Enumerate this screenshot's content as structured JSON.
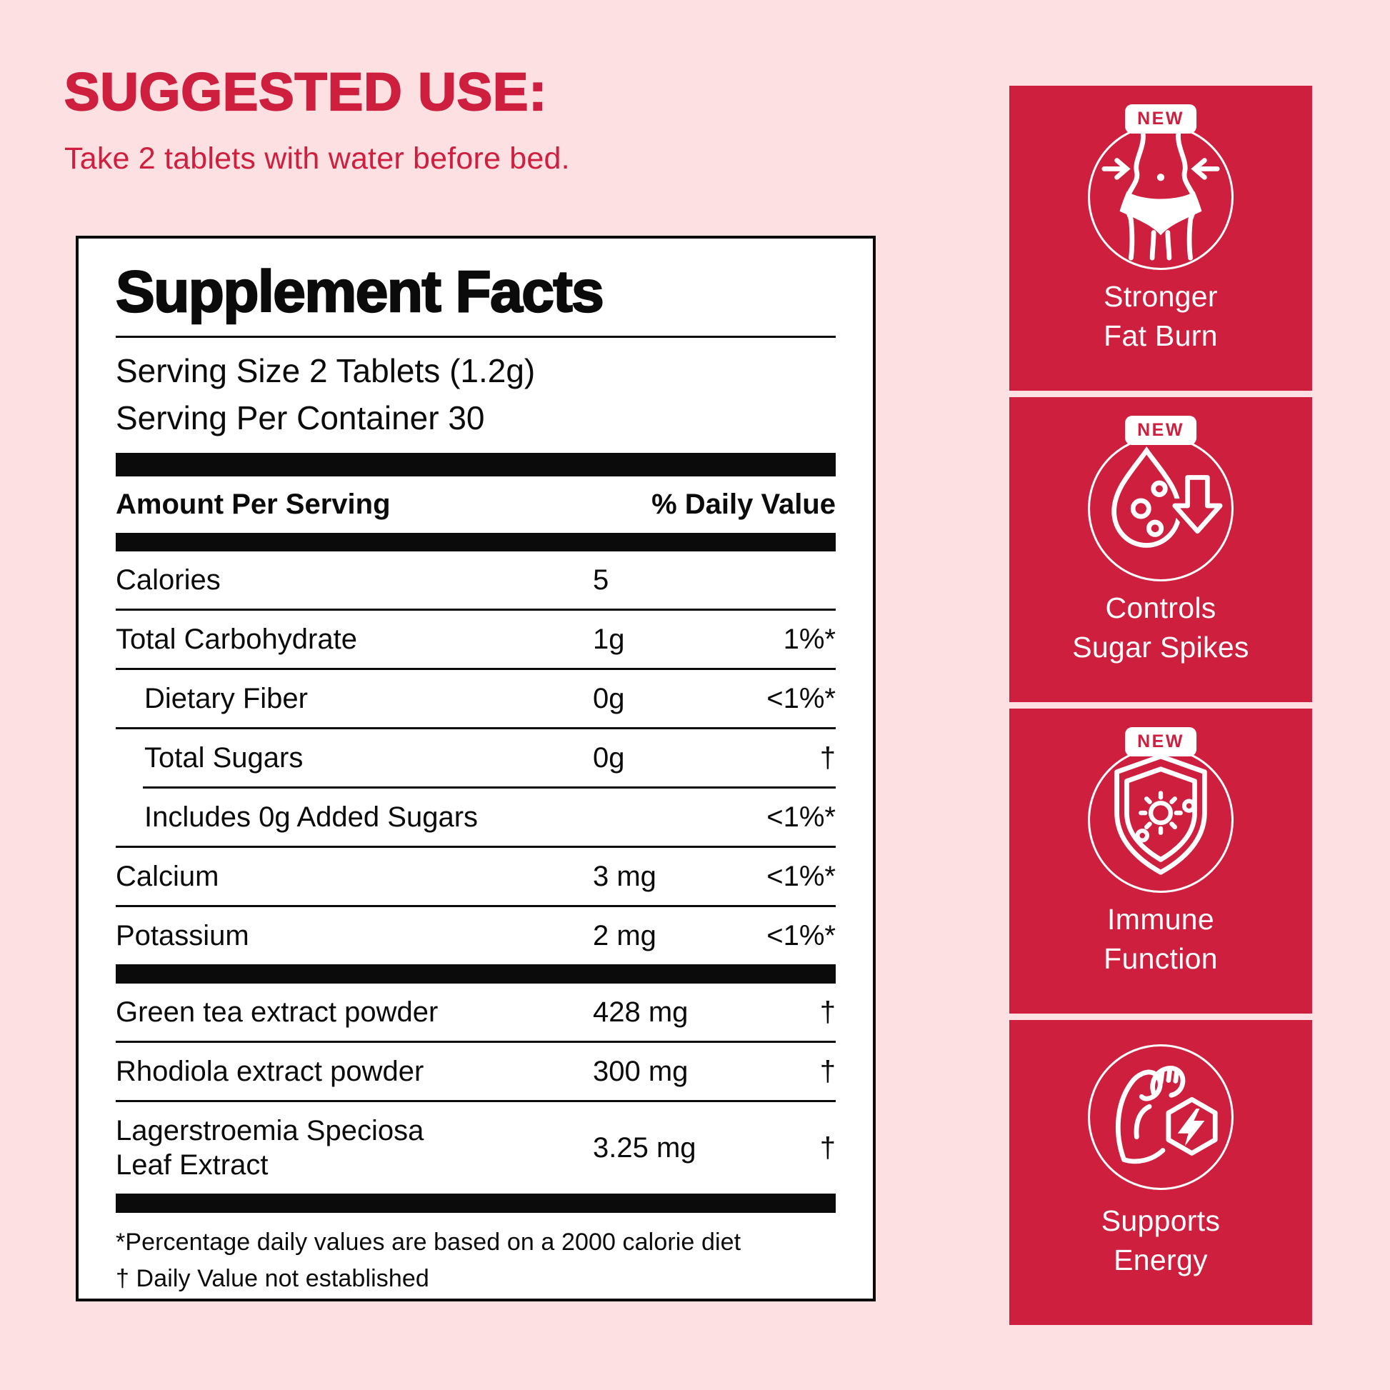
{
  "header": {
    "title": "SUGGESTED USE:",
    "subtitle": "Take 2 tablets with water before bed."
  },
  "facts": {
    "title": "Supplement Facts",
    "serving_size": "Serving Size 2 Tablets (1.2g)",
    "servings_per_container": "Serving Per Container 30",
    "columns": {
      "amount_header": "Amount Per Serving",
      "dv_header": "% Daily Value"
    },
    "rows": [
      {
        "name": "Calories",
        "amount": "5",
        "dv": ""
      },
      {
        "name": "Total Carbohydrate",
        "amount": "1g",
        "dv": "1%*"
      },
      {
        "name": "Dietary Fiber",
        "amount": "0g",
        "dv": "<1%*",
        "indent": true
      },
      {
        "name": "Total Sugars",
        "amount": "0g",
        "dv": "†",
        "indent": true
      },
      {
        "name": "Includes 0g Added Sugars",
        "amount": "",
        "dv": "<1%*",
        "indent": true,
        "sep_indent": true
      },
      {
        "name": "Calcium",
        "amount": "3 mg",
        "dv": "<1%*"
      },
      {
        "name": "Potassium",
        "amount": "2 mg",
        "dv": "<1%*"
      }
    ],
    "ingredient_rows": [
      {
        "name": "Green tea extract powder",
        "amount": "428 mg",
        "dv": "†"
      },
      {
        "name": "Rhodiola extract powder",
        "amount": "300 mg",
        "dv": "†"
      },
      {
        "name": "Lagerstroemia Speciosa\nLeaf Extract",
        "amount": "3.25 mg",
        "dv": "†"
      }
    ],
    "footnotes": [
      "*Percentage daily values are based on a 2000 calorie diet",
      "† Daily Value not established"
    ]
  },
  "benefits": [
    {
      "badge": "NEW",
      "label": "Stronger\nFat Burn",
      "icon": "waist-slim-icon"
    },
    {
      "badge": "NEW",
      "label": "Controls\nSugar Spikes",
      "icon": "blood-sugar-drop-icon"
    },
    {
      "badge": "NEW",
      "label": "Immune\nFunction",
      "icon": "immune-shield-icon"
    },
    {
      "badge": null,
      "label": "Supports\nEnergy",
      "icon": "energy-arm-icon"
    }
  ],
  "colors": {
    "accent_red": "#CE1F3F",
    "background_pink": "#FDE0E2",
    "text_black": "#0B0B0B",
    "panel_white": "#FFFFFF"
  }
}
